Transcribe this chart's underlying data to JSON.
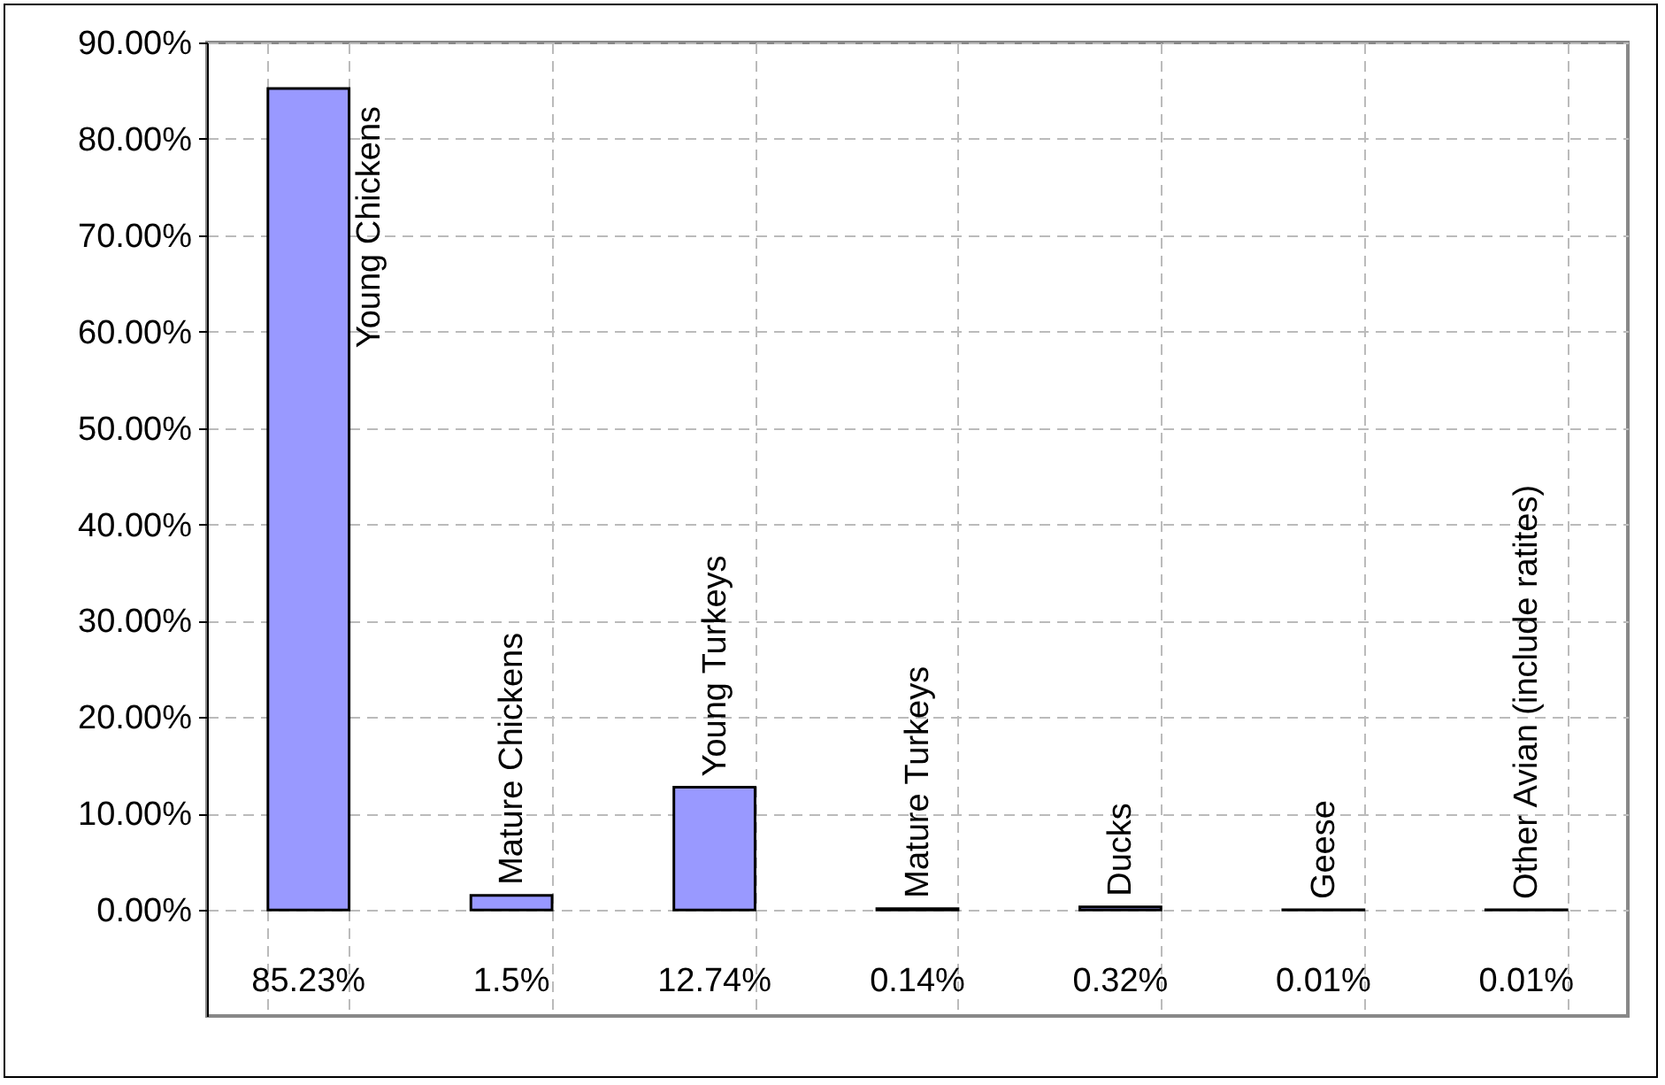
{
  "chart_data": {
    "type": "bar",
    "categories": [
      "Young Chickens",
      "Mature Chickens",
      "Young Turkeys",
      "Mature Turkeys",
      "Ducks",
      "Geese",
      "Other Avian (include ratites)"
    ],
    "values": [
      85.23,
      1.5,
      12.74,
      0.14,
      0.32,
      0.01,
      0.01
    ],
    "value_labels": [
      "85.23%",
      "1.5%",
      "12.74%",
      "0.14%",
      "0.32%",
      "0.01%",
      "0.01%"
    ],
    "color": "#9999ff",
    "ylim": [
      -11,
      90
    ],
    "yticks": [
      {
        "value": 0,
        "label": "0.00%"
      },
      {
        "value": 10,
        "label": "10.00%"
      },
      {
        "value": 20,
        "label": "20.00%"
      },
      {
        "value": 30,
        "label": "30.00%"
      },
      {
        "value": 40,
        "label": "40.00%"
      },
      {
        "value": 50,
        "label": "50.00%"
      },
      {
        "value": 60,
        "label": "60.00%"
      },
      {
        "value": 70,
        "label": "70.00%"
      },
      {
        "value": 80,
        "label": "80.00%"
      },
      {
        "value": 90,
        "label": "90.00%"
      }
    ],
    "grid": true,
    "tick_labels": "y"
  }
}
